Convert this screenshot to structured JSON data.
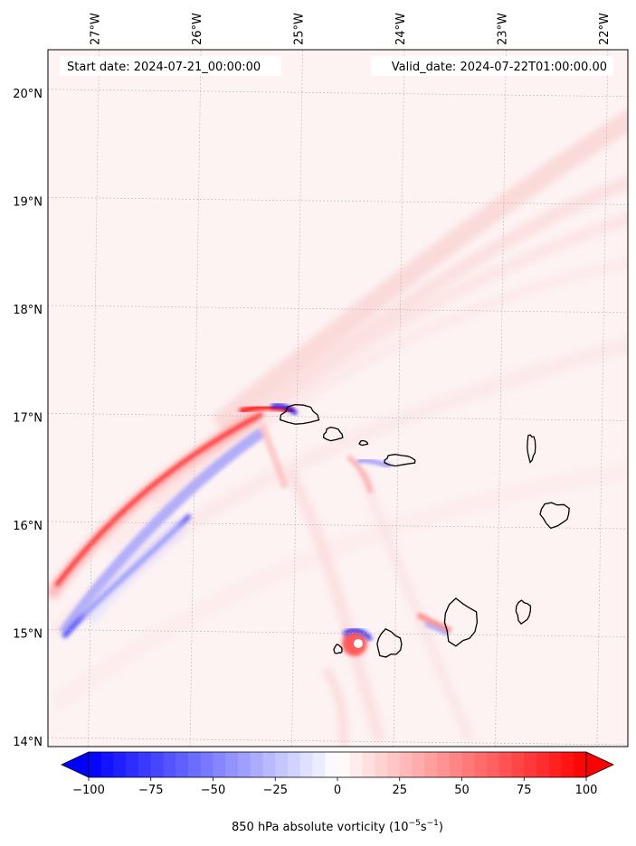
{
  "header": {
    "start_label": "Start date: 2024-07-21_00:00:00",
    "valid_label": "Valid_date: 2024-07-22T01:00:00.00"
  },
  "map": {
    "extent": {
      "lon": [
        -27.45,
        -21.75
      ],
      "lat": [
        13.95,
        20.4
      ]
    },
    "lon_ticks": [
      {
        "value": -27,
        "label": "27°W"
      },
      {
        "value": -26,
        "label": "26°W"
      },
      {
        "value": -25,
        "label": "25°W"
      },
      {
        "value": -24,
        "label": "24°W"
      },
      {
        "value": -23,
        "label": "23°W"
      },
      {
        "value": -22,
        "label": "22°W"
      }
    ],
    "lat_ticks": [
      {
        "value": 20,
        "label": "20°N"
      },
      {
        "value": 19,
        "label": "19°N"
      },
      {
        "value": 18,
        "label": "18°N"
      },
      {
        "value": 17,
        "label": "17°N"
      },
      {
        "value": 16,
        "label": "16°N"
      },
      {
        "value": 15,
        "label": "15°N"
      },
      {
        "value": 14,
        "label": "14°N"
      }
    ],
    "gridlines": true,
    "islands": [
      {
        "name": "Santo Antão",
        "lon": -24.98,
        "lat": 17.02,
        "rx": 0.18,
        "ry": 0.09
      },
      {
        "name": "São Vicente",
        "lon": -24.65,
        "lat": 16.84,
        "rx": 0.09,
        "ry": 0.06
      },
      {
        "name": "Santa Luzia",
        "lon": -24.35,
        "lat": 16.76,
        "rx": 0.04,
        "ry": 0.02
      },
      {
        "name": "São Nicolau",
        "lon": -24.0,
        "lat": 16.6,
        "rx": 0.15,
        "ry": 0.05
      },
      {
        "name": "Sal",
        "lon": -22.7,
        "lat": 16.72,
        "rx": 0.04,
        "ry": 0.12
      },
      {
        "name": "Boa Vista",
        "lon": -22.47,
        "lat": 16.1,
        "rx": 0.14,
        "ry": 0.11
      },
      {
        "name": "Maio",
        "lon": -22.78,
        "lat": 15.2,
        "rx": 0.07,
        "ry": 0.1
      },
      {
        "name": "Santiago",
        "lon": -23.4,
        "lat": 15.1,
        "rx": 0.16,
        "ry": 0.2
      },
      {
        "name": "Fogo",
        "lon": -24.1,
        "lat": 14.9,
        "rx": 0.12,
        "ry": 0.12
      },
      {
        "name": "Brava",
        "lon": -24.6,
        "lat": 14.85,
        "rx": 0.04,
        "ry": 0.04
      }
    ]
  },
  "colorbar": {
    "min": -100,
    "max": 100,
    "ticks": [
      {
        "value": -100,
        "label": "−100"
      },
      {
        "value": -75,
        "label": "−75"
      },
      {
        "value": -50,
        "label": "−50"
      },
      {
        "value": -25,
        "label": "−25"
      },
      {
        "value": 0,
        "label": "0"
      },
      {
        "value": 25,
        "label": "25"
      },
      {
        "value": 50,
        "label": "50"
      },
      {
        "value": 75,
        "label": "75"
      },
      {
        "value": 100,
        "label": "100"
      }
    ],
    "label_main": "850 hPa absolute vorticity (10",
    "label_exp1": "−5",
    "label_mid": "s",
    "label_exp2": "−1",
    "label_close": ")",
    "colormap": "bwr",
    "extend": "both"
  },
  "colors": {
    "neg_max": "#0000ff",
    "pos_max": "#ff0000",
    "background_field": "#fdf3f3"
  }
}
